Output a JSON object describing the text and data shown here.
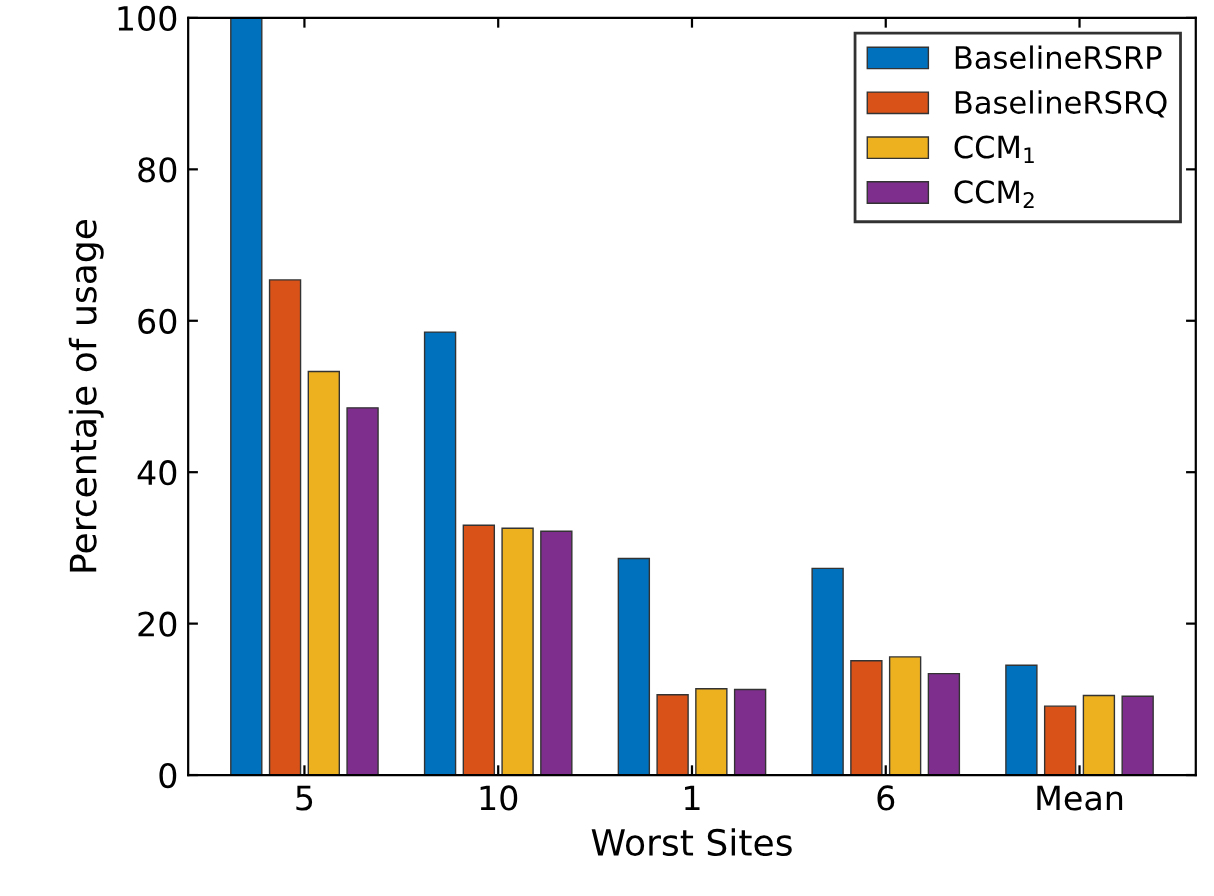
{
  "chart_data": {
    "type": "bar",
    "xlabel": "Worst Sites",
    "ylabel": "Percentaje of usage",
    "categories": [
      "5",
      "10",
      "1",
      "6",
      "Mean"
    ],
    "series": [
      {
        "name": "BaselineRSRP",
        "color": "#0072bd",
        "values": [
          100,
          58.5,
          28.6,
          27.3,
          14.5
        ]
      },
      {
        "name": "BaselineRSRQ",
        "color": "#d95319",
        "values": [
          65.4,
          33,
          10.6,
          15.1,
          9.1
        ]
      },
      {
        "name": "CCM$_{1}$",
        "color": "#edb120",
        "values": [
          53.3,
          32.6,
          11.4,
          15.6,
          10.5
        ]
      },
      {
        "name": "CCM$_{2}$",
        "color": "#7e2f8e",
        "values": [
          48.5,
          32.2,
          11.3,
          13.4,
          10.4
        ]
      }
    ],
    "ylim": [
      0,
      100
    ],
    "yticks": [
      0,
      20,
      40,
      60,
      80,
      100
    ],
    "grid": false,
    "legend": "top right"
  }
}
